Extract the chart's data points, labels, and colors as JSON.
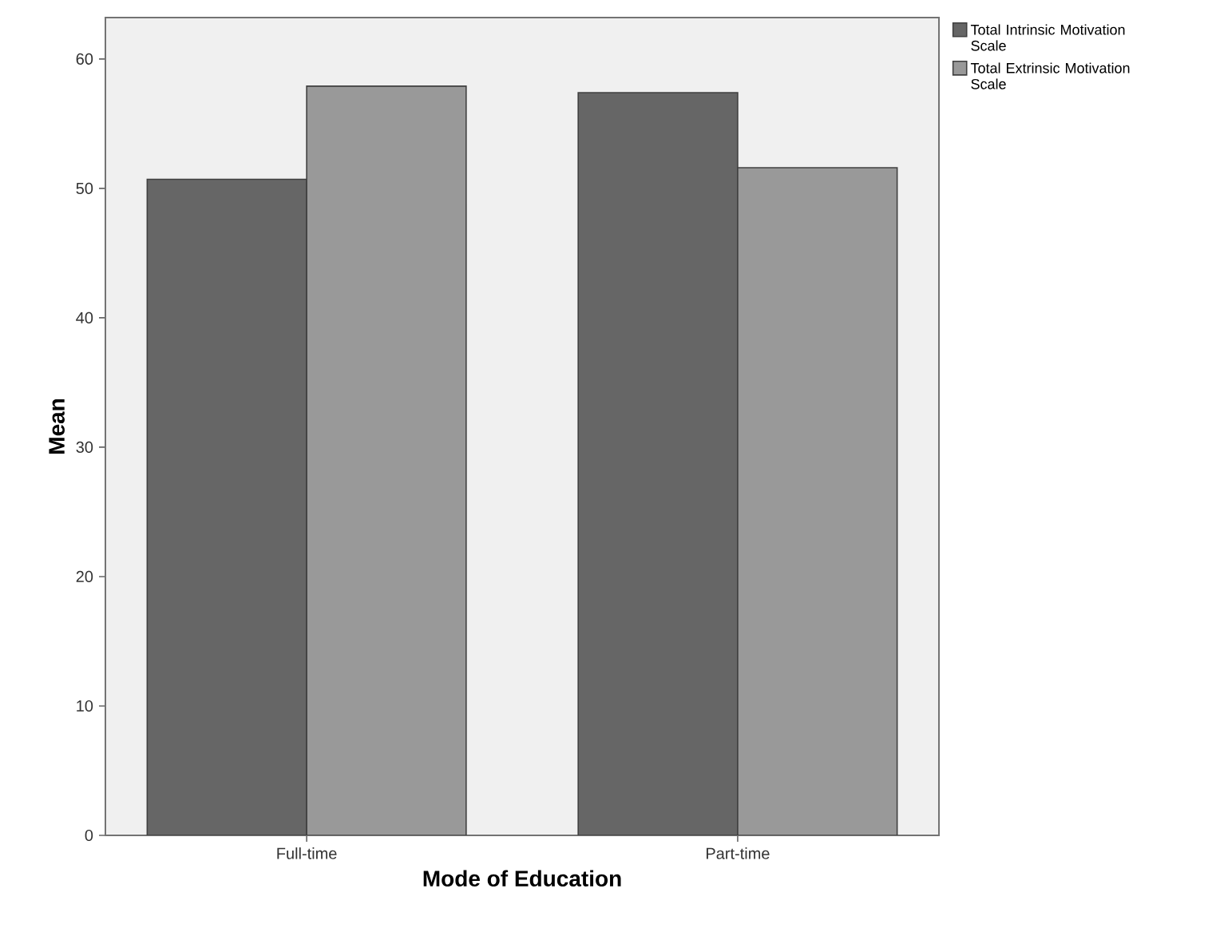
{
  "chart_data": {
    "type": "bar",
    "xlabel": "Mode of Education",
    "ylabel": "Mean",
    "categories": [
      "Full-time",
      "Part-time"
    ],
    "series": [
      {
        "name": "Total Intrinsic Motivation Scale",
        "color": "#666666",
        "values": [
          50.7,
          57.4
        ]
      },
      {
        "name": "Total Extrinsic Motivation Scale",
        "color": "#999999",
        "values": [
          57.9,
          51.6
        ]
      }
    ],
    "ylim": [
      0,
      63.2
    ],
    "yticks": [
      0,
      10,
      20,
      30,
      40,
      50,
      60
    ],
    "legend": "top right"
  }
}
